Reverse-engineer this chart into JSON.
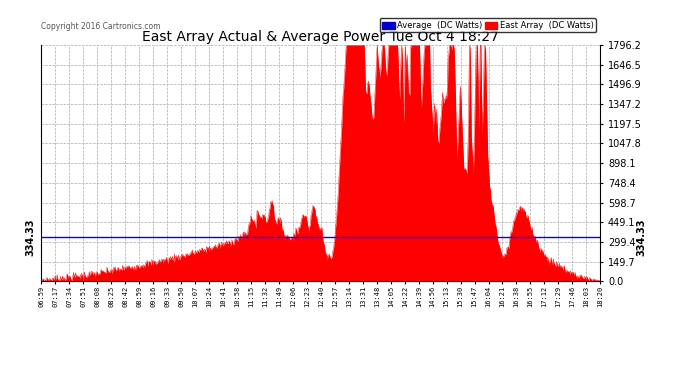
{
  "title": "East Array Actual & Average Power Tue Oct 4 18:27",
  "copyright": "Copyright 2016 Cartronics.com",
  "legend_avg": "Average  (DC Watts)",
  "legend_east": "East Array  (DC Watts)",
  "avg_value": 334.33,
  "ymin": 0.0,
  "ymax": 1796.2,
  "yticks": [
    0.0,
    149.7,
    299.4,
    449.1,
    598.7,
    748.4,
    898.1,
    1047.8,
    1197.5,
    1347.2,
    1496.9,
    1646.5,
    1796.2
  ],
  "bg_color": "#ffffff",
  "plot_bg_color": "#ffffff",
  "grid_color": "#aaaaaa",
  "fill_color": "#ff0000",
  "avg_line_color": "#0000ff",
  "title_color": "#000000",
  "xtick_labels": [
    "06:59",
    "07:17",
    "07:34",
    "07:51",
    "08:08",
    "08:25",
    "08:42",
    "08:59",
    "09:16",
    "09:33",
    "09:50",
    "10:07",
    "10:24",
    "10:41",
    "10:58",
    "11:15",
    "11:32",
    "11:49",
    "12:06",
    "12:23",
    "12:40",
    "12:57",
    "13:14",
    "13:31",
    "13:48",
    "14:05",
    "14:22",
    "14:39",
    "14:56",
    "15:13",
    "15:30",
    "15:47",
    "16:04",
    "16:21",
    "16:38",
    "16:55",
    "17:12",
    "17:29",
    "17:46",
    "18:03",
    "18:20"
  ]
}
